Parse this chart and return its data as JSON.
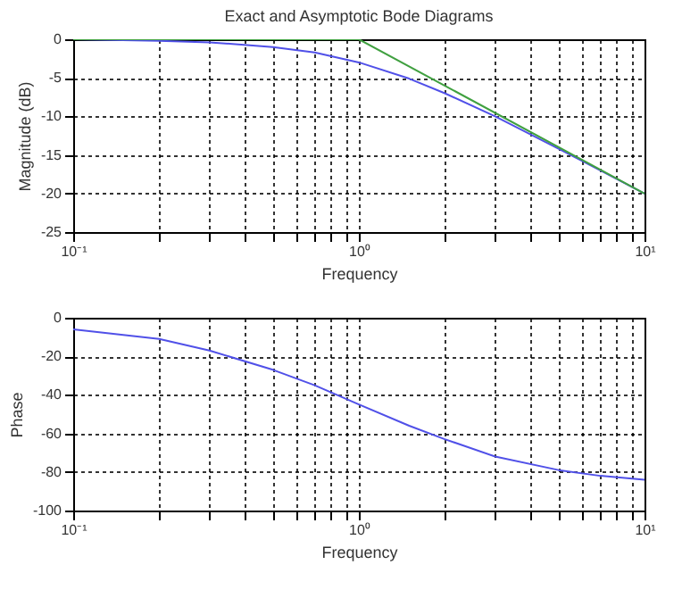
{
  "chart_data": [
    {
      "type": "line",
      "title": "Exact and Asymptotic Bode Diagrams",
      "xlabel": "Frequency",
      "ylabel": "Magnitude (dB)",
      "log": "x",
      "grid": true,
      "xlim": [
        0.1,
        10
      ],
      "ylim": [
        -25,
        0
      ],
      "xticks": [
        {
          "value": 0.1,
          "label": "10⁻¹"
        },
        {
          "value": 0.2,
          "label": null
        },
        {
          "value": 0.3,
          "label": null
        },
        {
          "value": 0.4,
          "label": null
        },
        {
          "value": 0.5,
          "label": null
        },
        {
          "value": 0.6,
          "label": null
        },
        {
          "value": 0.7,
          "label": null
        },
        {
          "value": 0.8,
          "label": null
        },
        {
          "value": 0.9,
          "label": null
        },
        {
          "value": 1,
          "label": "10⁰"
        },
        {
          "value": 2,
          "label": null
        },
        {
          "value": 3,
          "label": null
        },
        {
          "value": 4,
          "label": null
        },
        {
          "value": 5,
          "label": null
        },
        {
          "value": 6,
          "label": null
        },
        {
          "value": 7,
          "label": null
        },
        {
          "value": 8,
          "label": null
        },
        {
          "value": 9,
          "label": null
        },
        {
          "value": 10,
          "label": "10¹"
        }
      ],
      "yticks": [
        -25,
        -20,
        -15,
        -10,
        -5,
        0
      ],
      "series": [
        {
          "color": "#5050e8",
          "x": [
            0.1,
            0.2,
            0.3,
            0.5,
            0.7,
            1,
            1.5,
            2,
            3,
            5,
            7,
            10
          ],
          "values": [
            0,
            -0.2,
            -0.4,
            -1,
            -1.7,
            -3,
            -5.1,
            -7,
            -10,
            -14.2,
            -17,
            -20
          ]
        },
        {
          "color": "#40a040",
          "x": [
            0.1,
            1,
            10
          ],
          "values": [
            0,
            0,
            -20
          ]
        }
      ]
    },
    {
      "type": "line",
      "xlabel": "Frequency",
      "ylabel": "Phase",
      "log": "x",
      "grid": true,
      "xlim": [
        0.1,
        10
      ],
      "ylim": [
        -100,
        0
      ],
      "xticks": [
        {
          "value": 0.1,
          "label": "10⁻¹"
        },
        {
          "value": 0.2,
          "label": null
        },
        {
          "value": 0.3,
          "label": null
        },
        {
          "value": 0.4,
          "label": null
        },
        {
          "value": 0.5,
          "label": null
        },
        {
          "value": 0.6,
          "label": null
        },
        {
          "value": 0.7,
          "label": null
        },
        {
          "value": 0.8,
          "label": null
        },
        {
          "value": 0.9,
          "label": null
        },
        {
          "value": 1,
          "label": "10⁰"
        },
        {
          "value": 2,
          "label": null
        },
        {
          "value": 3,
          "label": null
        },
        {
          "value": 4,
          "label": null
        },
        {
          "value": 5,
          "label": null
        },
        {
          "value": 6,
          "label": null
        },
        {
          "value": 7,
          "label": null
        },
        {
          "value": 8,
          "label": null
        },
        {
          "value": 9,
          "label": null
        },
        {
          "value": 10,
          "label": "10¹"
        }
      ],
      "yticks": [
        -100,
        -80,
        -60,
        -40,
        -20,
        0
      ],
      "series": [
        {
          "color": "#5050e8",
          "x": [
            0.1,
            0.2,
            0.3,
            0.5,
            0.7,
            1,
            1.5,
            2,
            3,
            5,
            7,
            10
          ],
          "values": [
            -6,
            -11,
            -17,
            -27,
            -35,
            -45,
            -56,
            -63,
            -72,
            -79,
            -82,
            -84
          ]
        }
      ]
    }
  ]
}
